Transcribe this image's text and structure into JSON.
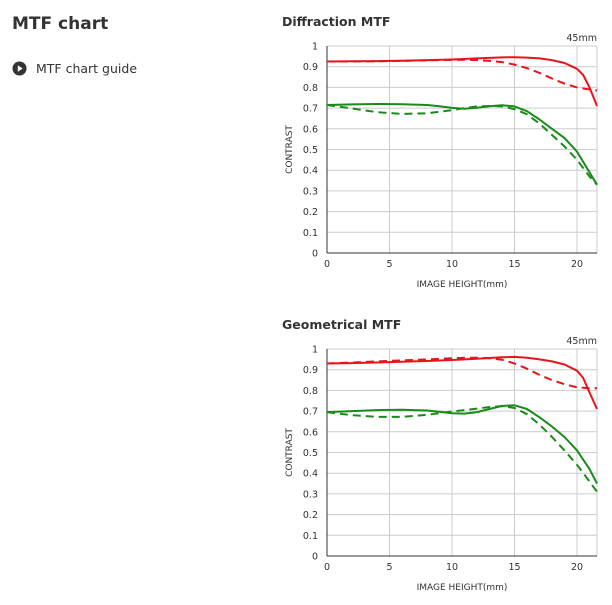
{
  "page": {
    "title": "MTF chart",
    "guide_link": {
      "label": "MTF chart guide"
    }
  },
  "colors": {
    "sagittal_red": "#e8141c",
    "green": "#1a8a1a",
    "grid": "#cccccc",
    "axis": "#333333"
  },
  "chart_data": [
    {
      "type": "line",
      "title": "Diffraction MTF",
      "annotation": "45mm",
      "xlabel": "IMAGE HEIGHT(mm)",
      "ylabel": "CONTRAST",
      "xlim": [
        0,
        21.6
      ],
      "ylim": [
        0,
        1
      ],
      "x_ticks": [
        0,
        5,
        10,
        15,
        20
      ],
      "y_ticks": [
        0,
        0.1,
        0.2,
        0.3,
        0.4,
        0.5,
        0.6,
        0.7,
        0.8,
        0.9,
        1
      ],
      "y_tick_labels": [
        "0",
        "0.1",
        "0.2",
        "0.3",
        "0.4",
        "0.5",
        "0.6",
        "0.7",
        "0.8",
        "0.9",
        "1"
      ],
      "grid": true,
      "series": [
        {
          "color": "#e8141c",
          "dash": false,
          "x": [
            0,
            2,
            4,
            6,
            8,
            10,
            12,
            14,
            15,
            16,
            17,
            18,
            19,
            20,
            20.5,
            21,
            21.6
          ],
          "y": [
            0.925,
            0.926,
            0.927,
            0.929,
            0.932,
            0.935,
            0.94,
            0.945,
            0.946,
            0.944,
            0.94,
            0.932,
            0.918,
            0.89,
            0.86,
            0.8,
            0.71
          ]
        },
        {
          "color": "#e8141c",
          "dash": true,
          "x": [
            0,
            2,
            4,
            6,
            8,
            10,
            11,
            12,
            13,
            14,
            15,
            16,
            17,
            18,
            19,
            20,
            21,
            21.6
          ],
          "y": [
            0.925,
            0.925,
            0.926,
            0.928,
            0.931,
            0.933,
            0.934,
            0.932,
            0.928,
            0.922,
            0.91,
            0.893,
            0.87,
            0.843,
            0.818,
            0.8,
            0.79,
            0.785
          ]
        },
        {
          "color": "#1a8a1a",
          "dash": false,
          "x": [
            0,
            2,
            4,
            6,
            8,
            9,
            10,
            11,
            12,
            13,
            14,
            15,
            16,
            17,
            18,
            19,
            20,
            21,
            21.6
          ],
          "y": [
            0.715,
            0.718,
            0.72,
            0.719,
            0.715,
            0.709,
            0.701,
            0.697,
            0.702,
            0.709,
            0.714,
            0.708,
            0.685,
            0.645,
            0.6,
            0.555,
            0.49,
            0.39,
            0.33
          ]
        },
        {
          "color": "#1a8a1a",
          "dash": true,
          "x": [
            0,
            2,
            4,
            6,
            8,
            10,
            11,
            12,
            13,
            14,
            15,
            16,
            17,
            18,
            19,
            20,
            21,
            21.6
          ],
          "y": [
            0.715,
            0.698,
            0.68,
            0.672,
            0.675,
            0.69,
            0.7,
            0.708,
            0.71,
            0.708,
            0.695,
            0.67,
            0.625,
            0.57,
            0.515,
            0.45,
            0.37,
            0.33
          ]
        }
      ]
    },
    {
      "type": "line",
      "title": "Geometrical MTF",
      "annotation": "45mm",
      "xlabel": "IMAGE HEIGHT(mm)",
      "ylabel": "CONTRAST",
      "xlim": [
        0,
        21.6
      ],
      "ylim": [
        0,
        1
      ],
      "x_ticks": [
        0,
        5,
        10,
        15,
        20
      ],
      "y_ticks": [
        0,
        0.1,
        0.2,
        0.3,
        0.4,
        0.5,
        0.6,
        0.7,
        0.8,
        0.9,
        1
      ],
      "y_tick_labels": [
        "0",
        "0.1",
        "0.2",
        "0.3",
        "0.4",
        "0.5",
        "0.6",
        "0.7",
        "0.8",
        "0.9",
        "1"
      ],
      "grid": true,
      "series": [
        {
          "color": "#e8141c",
          "dash": false,
          "x": [
            0,
            2,
            4,
            6,
            8,
            10,
            12,
            14,
            15,
            16,
            17,
            18,
            19,
            20,
            20.5,
            21,
            21.6
          ],
          "y": [
            0.93,
            0.932,
            0.935,
            0.938,
            0.942,
            0.947,
            0.953,
            0.96,
            0.962,
            0.958,
            0.95,
            0.94,
            0.925,
            0.895,
            0.86,
            0.79,
            0.71
          ]
        },
        {
          "color": "#e8141c",
          "dash": true,
          "x": [
            0,
            2,
            4,
            6,
            8,
            10,
            11,
            12,
            13,
            14,
            15,
            16,
            17,
            18,
            19,
            20,
            21,
            21.6
          ],
          "y": [
            0.93,
            0.935,
            0.94,
            0.945,
            0.95,
            0.955,
            0.958,
            0.958,
            0.955,
            0.948,
            0.93,
            0.905,
            0.875,
            0.85,
            0.83,
            0.815,
            0.81,
            0.81
          ]
        },
        {
          "color": "#1a8a1a",
          "dash": false,
          "x": [
            0,
            2,
            4,
            6,
            8,
            9,
            10,
            11,
            12,
            13,
            14,
            15,
            16,
            17,
            18,
            19,
            20,
            21,
            21.6
          ],
          "y": [
            0.695,
            0.7,
            0.705,
            0.707,
            0.703,
            0.697,
            0.69,
            0.688,
            0.695,
            0.71,
            0.725,
            0.728,
            0.71,
            0.67,
            0.625,
            0.575,
            0.51,
            0.42,
            0.35
          ]
        },
        {
          "color": "#1a8a1a",
          "dash": true,
          "x": [
            0,
            2,
            4,
            6,
            8,
            10,
            11,
            12,
            13,
            14,
            15,
            16,
            17,
            18,
            19,
            20,
            21,
            21.6
          ],
          "y": [
            0.695,
            0.68,
            0.672,
            0.672,
            0.682,
            0.698,
            0.705,
            0.712,
            0.72,
            0.724,
            0.715,
            0.685,
            0.635,
            0.575,
            0.51,
            0.44,
            0.36,
            0.31
          ]
        }
      ]
    }
  ]
}
